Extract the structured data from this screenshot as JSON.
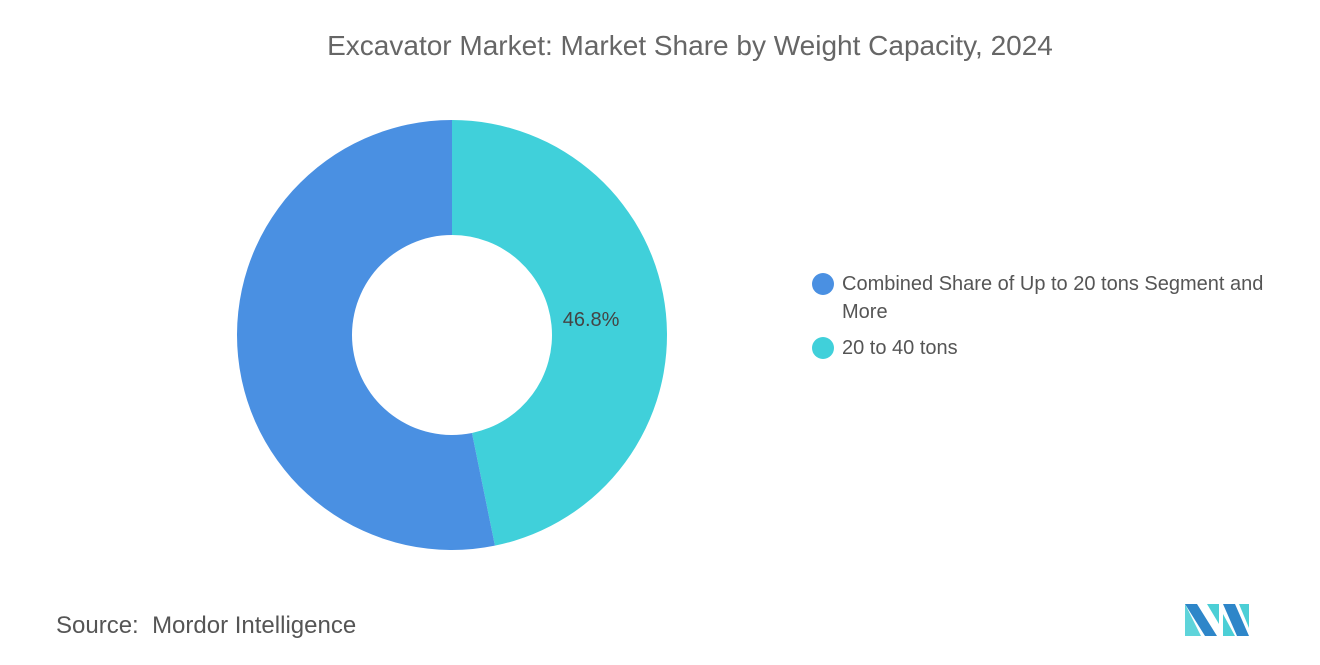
{
  "chart_data": {
    "type": "pie",
    "variant": "donut",
    "title": "Excavator Market: Market Share by Weight Capacity, 2024",
    "categories": [
      "Combined Share of Up to 20 tons Segment and More",
      "20 to 40 tons"
    ],
    "values": [
      53.2,
      46.8
    ],
    "data_labels": [
      "",
      "46.8%"
    ],
    "colors": [
      "#4a90e2",
      "#40d0da"
    ],
    "legend_position": "right"
  },
  "source": {
    "label": "Source:",
    "value": "Mordor Intelligence"
  },
  "logo": {
    "colors": [
      "#2e86c9",
      "#4ccfd6"
    ]
  }
}
